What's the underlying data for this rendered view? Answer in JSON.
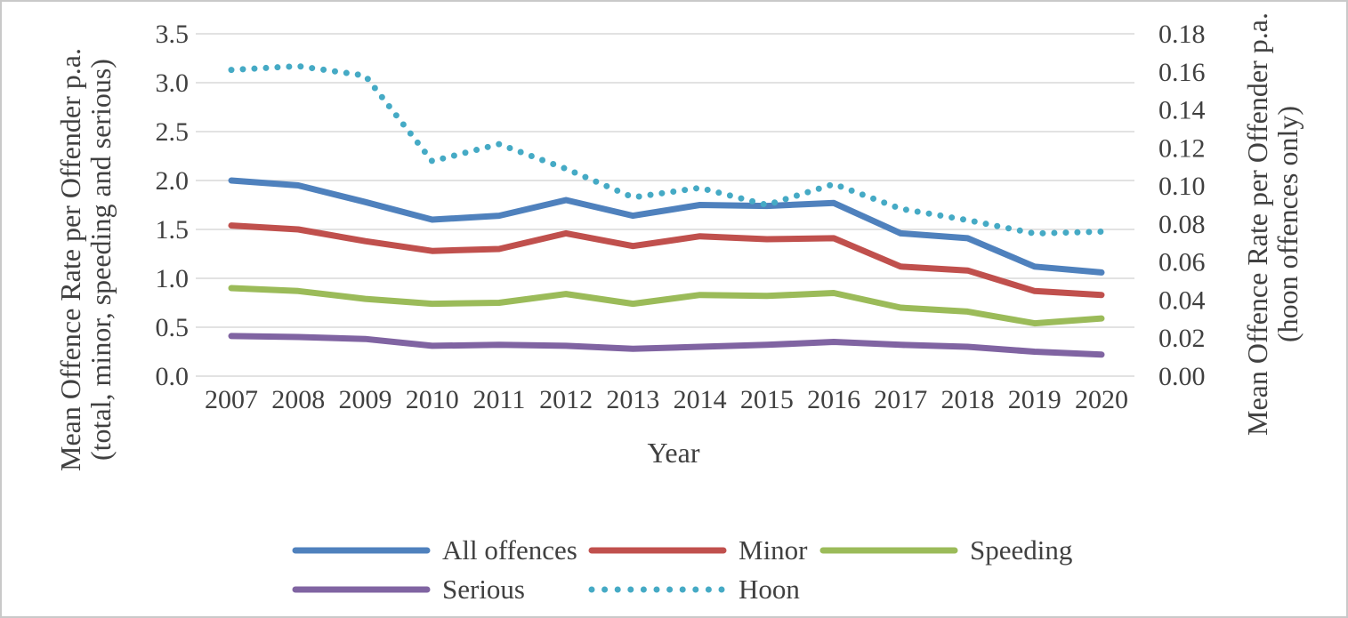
{
  "chart_data": {
    "type": "line",
    "x_axis": {
      "title": "Year",
      "categories": [
        "2007",
        "2008",
        "2009",
        "2010",
        "2011",
        "2012",
        "2013",
        "2014",
        "2015",
        "2016",
        "2017",
        "2018",
        "2019",
        "2020"
      ]
    },
    "y_axis_left": {
      "title_line1": "Mean Offence Rate per Offender p.a.",
      "title_line2": "(total, minor, speeding and serious)",
      "ticks": [
        "3.5",
        "3.0",
        "2.5",
        "2.0",
        "1.5",
        "1.0",
        "0.5",
        "0.0"
      ],
      "ylim": [
        0,
        3.5
      ]
    },
    "y_axis_right": {
      "title_line1": "Mean Offence Rate per Offender p.a.",
      "title_line2": "(hoon offences only)",
      "ticks": [
        "0.18",
        "0.16",
        "0.14",
        "0.12",
        "0.10",
        "0.08",
        "0.06",
        "0.04",
        "0.02",
        "0.00"
      ],
      "ylim": [
        0,
        0.18
      ]
    },
    "grid": true,
    "legend_position": "bottom",
    "series": [
      {
        "name": "All offences",
        "color": "#4F81BD",
        "style": "solid",
        "axis": "left",
        "values": [
          2.0,
          1.95,
          1.78,
          1.6,
          1.64,
          1.8,
          1.64,
          1.75,
          1.74,
          1.77,
          1.46,
          1.41,
          1.12,
          1.06
        ]
      },
      {
        "name": "Minor",
        "color": "#C0504D",
        "style": "solid",
        "axis": "left",
        "values": [
          1.54,
          1.5,
          1.38,
          1.28,
          1.3,
          1.46,
          1.33,
          1.43,
          1.4,
          1.41,
          1.12,
          1.08,
          0.87,
          0.83
        ]
      },
      {
        "name": "Speeding",
        "color": "#9BBB59",
        "style": "solid",
        "axis": "left",
        "values": [
          0.9,
          0.87,
          0.79,
          0.74,
          0.75,
          0.84,
          0.74,
          0.83,
          0.82,
          0.85,
          0.7,
          0.66,
          0.54,
          0.59
        ]
      },
      {
        "name": "Serious",
        "color": "#8064A2",
        "style": "solid",
        "axis": "left",
        "values": [
          0.41,
          0.4,
          0.38,
          0.31,
          0.32,
          0.31,
          0.28,
          0.3,
          0.32,
          0.35,
          0.32,
          0.3,
          0.25,
          0.22
        ]
      },
      {
        "name": "Hoon",
        "color": "#45AAC5",
        "style": "dotted",
        "axis": "right",
        "values": [
          0.161,
          0.163,
          0.158,
          0.113,
          0.122,
          0.109,
          0.094,
          0.099,
          0.09,
          0.101,
          0.088,
          0.082,
          0.075,
          0.076
        ]
      }
    ]
  },
  "colors": {
    "text": "#404040",
    "gridline": "#D9D9D9",
    "border": "#C9C9C9",
    "background": "#FFFFFF"
  }
}
